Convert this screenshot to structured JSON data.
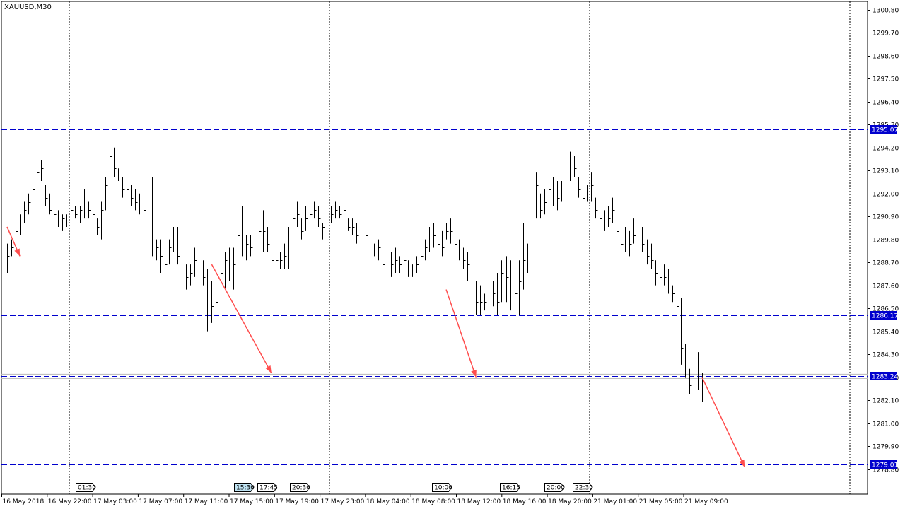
{
  "chart_data": {
    "type": "bar",
    "title": "XAUUSD,M30",
    "symbol": "XAUUSD",
    "timeframe": "M30",
    "ylim": [
      1277.6,
      1301.2
    ],
    "y_ticks": [
      "1300.80",
      "1299.70",
      "1298.60",
      "1297.50",
      "1296.40",
      "1295.30",
      "1294.20",
      "1293.10",
      "1292.00",
      "1290.90",
      "1289.80",
      "1288.70",
      "1287.60",
      "1286.50",
      "1285.40",
      "1284.30",
      "1283.20",
      "1282.10",
      "1281.00",
      "1279.90",
      "1278.80"
    ],
    "x_ticks": [
      "16 May 2018",
      "16 May 22:00",
      "17 May 03:00",
      "17 May 07:00",
      "17 May 11:00",
      "17 May 15:00",
      "17 May 19:00",
      "17 May 23:00",
      "18 May 04:00",
      "18 May 08:00",
      "18 May 12:00",
      "18 May 16:00",
      "18 May 20:00",
      "21 May 01:00",
      "21 May 05:00",
      "21 May 09:00"
    ],
    "horizontal_levels": [
      {
        "price": 1295.07,
        "label": "1295.07",
        "color": "#0000cd"
      },
      {
        "price": 1286.17,
        "label": "1286.17",
        "color": "#0000cd"
      },
      {
        "price": 1283.24,
        "label": "1283.24",
        "color": "#0000cd"
      },
      {
        "price": 1279.01,
        "label": "1279.01",
        "color": "#0000cd"
      }
    ],
    "event_labels": [
      "01:30",
      "15:30",
      "17:45",
      "20:30",
      "10:00",
      "16:15",
      "20:00",
      "22:30"
    ],
    "bars": [
      [
        1289.6,
        1288.2,
        1289.0
      ],
      [
        1289.8,
        1289.0,
        1289.4
      ],
      [
        1290.6,
        1289.2,
        1290.2
      ],
      [
        1291.0,
        1290.0,
        1290.6
      ],
      [
        1291.6,
        1290.6,
        1291.2
      ],
      [
        1292.0,
        1291.0,
        1291.6
      ],
      [
        1292.6,
        1291.6,
        1292.2
      ],
      [
        1293.4,
        1292.2,
        1293.0
      ],
      [
        1293.6,
        1292.6,
        1293.2
      ],
      [
        1292.4,
        1291.4,
        1291.8
      ],
      [
        1292.0,
        1291.0,
        1291.2
      ],
      [
        1291.4,
        1290.6,
        1291.0
      ],
      [
        1291.2,
        1290.4,
        1290.6
      ],
      [
        1291.0,
        1290.2,
        1290.8
      ],
      [
        1291.0,
        1290.4,
        1290.6
      ],
      [
        1291.4,
        1290.8,
        1291.2
      ],
      [
        1291.4,
        1290.8,
        1291.0
      ],
      [
        1291.4,
        1290.6,
        1291.2
      ],
      [
        1292.2,
        1290.8,
        1291.4
      ],
      [
        1291.6,
        1290.8,
        1291.2
      ],
      [
        1291.6,
        1290.6,
        1291.0
      ],
      [
        1290.8,
        1290.0,
        1290.4
      ],
      [
        1291.6,
        1289.8,
        1291.2
      ],
      [
        1292.8,
        1291.2,
        1292.4
      ],
      [
        1294.2,
        1292.4,
        1293.8
      ],
      [
        1294.2,
        1292.8,
        1293.2
      ],
      [
        1293.2,
        1292.6,
        1292.8
      ],
      [
        1292.8,
        1291.8,
        1292.2
      ],
      [
        1292.8,
        1291.8,
        1292.2
      ],
      [
        1292.4,
        1291.4,
        1291.8
      ],
      [
        1292.2,
        1291.2,
        1291.6
      ],
      [
        1292.0,
        1291.0,
        1291.4
      ],
      [
        1291.6,
        1290.6,
        1291.2
      ],
      [
        1293.2,
        1291.2,
        1292.0
      ],
      [
        1292.8,
        1289.0,
        1289.8
      ],
      [
        1289.8,
        1288.8,
        1289.4
      ],
      [
        1289.8,
        1288.2,
        1289.0
      ],
      [
        1289.0,
        1288.0,
        1288.6
      ],
      [
        1289.8,
        1288.6,
        1289.4
      ],
      [
        1290.4,
        1289.2,
        1289.8
      ],
      [
        1290.4,
        1288.6,
        1289.0
      ],
      [
        1289.2,
        1288.0,
        1288.4
      ],
      [
        1288.6,
        1287.4,
        1288.0
      ],
      [
        1288.6,
        1287.6,
        1288.2
      ],
      [
        1289.4,
        1288.0,
        1288.8
      ],
      [
        1289.2,
        1287.8,
        1288.4
      ],
      [
        1288.8,
        1287.6,
        1288.0
      ],
      [
        1288.4,
        1285.4,
        1286.2
      ],
      [
        1287.8,
        1285.8,
        1286.6
      ],
      [
        1287.2,
        1286.0,
        1286.8
      ],
      [
        1288.8,
        1286.6,
        1288.2
      ],
      [
        1289.2,
        1287.4,
        1288.8
      ],
      [
        1289.4,
        1287.8,
        1288.4
      ],
      [
        1289.4,
        1287.4,
        1288.6
      ],
      [
        1290.6,
        1288.4,
        1290.0
      ],
      [
        1291.4,
        1289.0,
        1289.8
      ],
      [
        1290.0,
        1288.8,
        1289.6
      ],
      [
        1290.0,
        1289.0,
        1289.4
      ],
      [
        1290.8,
        1288.8,
        1289.2
      ],
      [
        1291.2,
        1289.6,
        1290.2
      ],
      [
        1291.2,
        1289.2,
        1290.2
      ],
      [
        1290.4,
        1289.2,
        1289.6
      ],
      [
        1289.8,
        1288.2,
        1288.8
      ],
      [
        1289.4,
        1288.2,
        1288.8
      ],
      [
        1289.2,
        1288.4,
        1288.8
      ],
      [
        1289.6,
        1288.4,
        1289.0
      ],
      [
        1290.4,
        1288.4,
        1289.8
      ],
      [
        1291.4,
        1290.0,
        1290.8
      ],
      [
        1291.6,
        1290.4,
        1291.0
      ],
      [
        1290.8,
        1289.8,
        1290.2
      ],
      [
        1291.4,
        1290.2,
        1290.8
      ],
      [
        1291.2,
        1290.6,
        1291.0
      ],
      [
        1291.6,
        1290.8,
        1291.2
      ],
      [
        1291.4,
        1290.4,
        1290.8
      ],
      [
        1290.6,
        1289.8,
        1290.4
      ],
      [
        1291.0,
        1290.2,
        1290.6
      ],
      [
        1291.4,
        1290.6,
        1291.0
      ],
      [
        1291.6,
        1290.8,
        1291.2
      ],
      [
        1291.4,
        1290.8,
        1291.0
      ],
      [
        1291.4,
        1290.8,
        1291.2
      ],
      [
        1290.8,
        1290.2,
        1290.4
      ],
      [
        1290.8,
        1290.0,
        1290.4
      ],
      [
        1290.6,
        1289.6,
        1290.0
      ],
      [
        1290.2,
        1289.4,
        1289.8
      ],
      [
        1290.4,
        1289.6,
        1290.0
      ],
      [
        1290.6,
        1289.4,
        1289.8
      ],
      [
        1289.6,
        1289.0,
        1289.2
      ],
      [
        1289.8,
        1288.8,
        1289.4
      ],
      [
        1289.4,
        1287.8,
        1288.6
      ],
      [
        1288.8,
        1288.0,
        1288.4
      ],
      [
        1289.2,
        1288.0,
        1288.6
      ],
      [
        1289.4,
        1288.2,
        1288.8
      ],
      [
        1289.0,
        1288.2,
        1288.6
      ],
      [
        1289.4,
        1288.2,
        1288.8
      ],
      [
        1288.8,
        1288.0,
        1288.4
      ],
      [
        1288.6,
        1288.0,
        1288.4
      ],
      [
        1289.0,
        1288.2,
        1288.6
      ],
      [
        1289.4,
        1288.6,
        1289.0
      ],
      [
        1289.8,
        1288.8,
        1289.4
      ],
      [
        1290.4,
        1289.2,
        1289.8
      ],
      [
        1290.6,
        1289.4,
        1290.0
      ],
      [
        1290.4,
        1289.2,
        1289.6
      ],
      [
        1290.2,
        1289.0,
        1289.4
      ],
      [
        1290.6,
        1289.8,
        1290.2
      ],
      [
        1290.8,
        1289.6,
        1290.2
      ],
      [
        1290.4,
        1289.2,
        1289.6
      ],
      [
        1289.8,
        1288.8,
        1289.2
      ],
      [
        1289.4,
        1288.4,
        1288.8
      ],
      [
        1289.2,
        1287.8,
        1288.6
      ],
      [
        1288.6,
        1287.0,
        1287.6
      ],
      [
        1287.8,
        1286.2,
        1286.8
      ],
      [
        1287.6,
        1286.2,
        1286.8
      ],
      [
        1287.2,
        1286.4,
        1286.8
      ],
      [
        1287.4,
        1286.4,
        1287.0
      ],
      [
        1287.8,
        1286.6,
        1287.2
      ],
      [
        1288.2,
        1286.2,
        1286.8
      ],
      [
        1288.8,
        1286.8,
        1288.2
      ],
      [
        1289.0,
        1286.8,
        1288.0
      ],
      [
        1288.8,
        1286.4,
        1287.6
      ],
      [
        1288.4,
        1286.2,
        1287.2
      ],
      [
        1288.8,
        1286.2,
        1287.8
      ],
      [
        1290.6,
        1287.4,
        1288.8
      ],
      [
        1289.6,
        1288.2,
        1289.2
      ],
      [
        1292.8,
        1289.8,
        1292.0
      ],
      [
        1293.0,
        1290.8,
        1292.4
      ],
      [
        1292.0,
        1290.8,
        1291.2
      ],
      [
        1292.2,
        1291.0,
        1291.6
      ],
      [
        1292.8,
        1291.2,
        1292.2
      ],
      [
        1292.8,
        1291.4,
        1292.0
      ],
      [
        1292.6,
        1291.2,
        1291.8
      ],
      [
        1292.6,
        1291.6,
        1292.0
      ],
      [
        1293.4,
        1291.8,
        1292.8
      ],
      [
        1294.0,
        1292.6,
        1293.6
      ],
      [
        1293.8,
        1292.8,
        1293.2
      ],
      [
        1292.8,
        1291.8,
        1292.2
      ],
      [
        1292.2,
        1291.4,
        1291.8
      ],
      [
        1292.4,
        1291.6,
        1292.0
      ],
      [
        1293.0,
        1291.6,
        1292.4
      ],
      [
        1291.8,
        1290.8,
        1291.2
      ],
      [
        1291.6,
        1290.4,
        1290.8
      ],
      [
        1291.2,
        1290.2,
        1290.6
      ],
      [
        1291.4,
        1290.4,
        1290.8
      ],
      [
        1291.8,
        1290.6,
        1291.2
      ],
      [
        1290.8,
        1289.6,
        1290.2
      ],
      [
        1291.0,
        1288.8,
        1289.6
      ],
      [
        1290.4,
        1289.2,
        1289.8
      ],
      [
        1290.2,
        1289.0,
        1289.6
      ],
      [
        1290.8,
        1289.6,
        1290.0
      ],
      [
        1290.4,
        1289.4,
        1289.8
      ],
      [
        1290.4,
        1289.2,
        1289.6
      ],
      [
        1289.8,
        1288.6,
        1289.0
      ],
      [
        1289.6,
        1288.4,
        1288.8
      ],
      [
        1288.8,
        1287.6,
        1288.2
      ],
      [
        1288.4,
        1287.8,
        1288.0
      ],
      [
        1288.6,
        1287.6,
        1288.0
      ],
      [
        1288.4,
        1287.2,
        1287.6
      ],
      [
        1287.6,
        1286.8,
        1287.2
      ],
      [
        1287.2,
        1286.2,
        1286.6
      ],
      [
        1287.0,
        1283.8,
        1284.6
      ],
      [
        1284.8,
        1283.2,
        1283.8
      ],
      [
        1283.6,
        1282.4,
        1282.8
      ],
      [
        1283.0,
        1282.2,
        1282.6
      ],
      [
        1284.4,
        1282.6,
        1283.0
      ],
      [
        1283.4,
        1282.0,
        1282.6
      ]
    ],
    "arrows": [
      {
        "from": [
          0,
          1290.4
        ],
        "to": [
          3,
          1289.0
        ]
      },
      {
        "from": [
          48,
          1288.6
        ],
        "to": [
          62,
          1283.4
        ]
      },
      {
        "from": [
          103,
          1287.4
        ],
        "to": [
          110,
          1283.2
        ]
      },
      {
        "from": [
          163,
          1283.2
        ],
        "to": [
          173,
          1278.9
        ]
      }
    ]
  }
}
